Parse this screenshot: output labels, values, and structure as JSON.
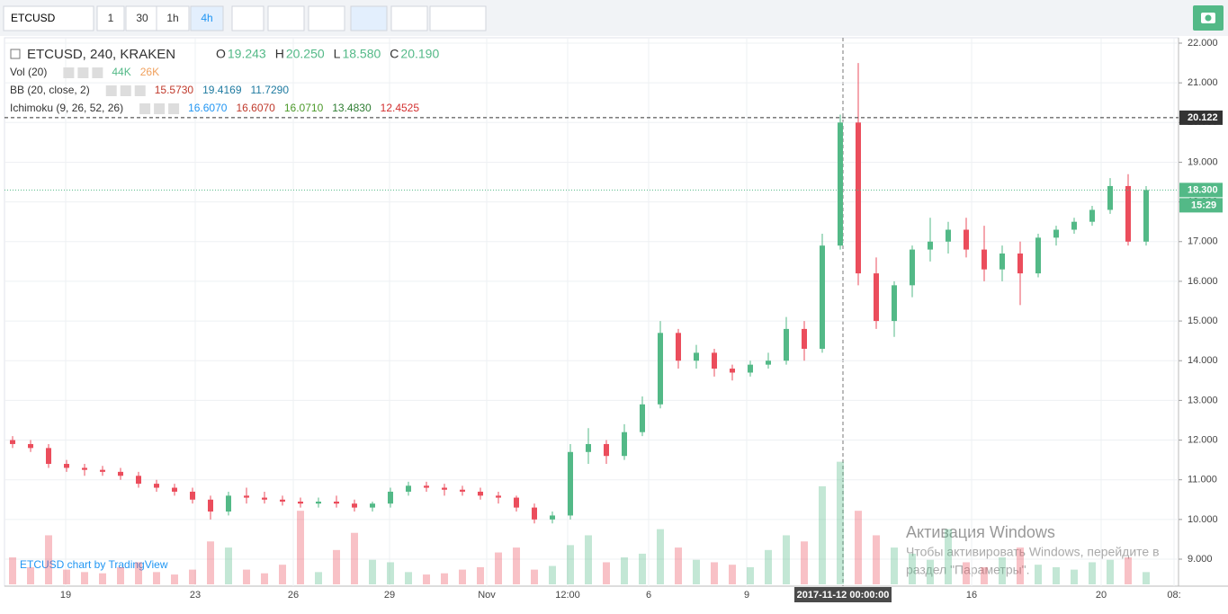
{
  "toolbar": {
    "symbol": "ETCUSD",
    "intervals": [
      "1",
      "30",
      "1h",
      "4h"
    ]
  },
  "legend": {
    "title": "ETCUSD, 240, KRAKEN",
    "ohlc": [
      {
        "k": "O",
        "v": "19.243"
      },
      {
        "k": "H",
        "v": "20.250"
      },
      {
        "k": "L",
        "v": "18.580"
      },
      {
        "k": "C",
        "v": "20.190"
      }
    ],
    "studies": [
      {
        "name": "Vol (20)",
        "values": [
          "44K",
          "26K"
        ],
        "colors": [
          "#53b987",
          "#f0a15e"
        ]
      },
      {
        "name": "BB (20, close, 2)",
        "values": [
          "15.5730",
          "19.4169",
          "11.7290"
        ],
        "colors": [
          "#c0392b",
          "#1e7aa0",
          "#1e7aa0"
        ]
      },
      {
        "name": "Ichimoku (9, 26, 52, 26)",
        "values": [
          "16.6070",
          "16.6070",
          "16.0710",
          "13.4830",
          "12.4525"
        ],
        "colors": [
          "#2196f3",
          "#c0392b",
          "#4c9a2a",
          "#2e7d32",
          "#d32f2f"
        ]
      }
    ]
  },
  "chart_data": {
    "type": "candlestick",
    "up_color": "#53b987",
    "down_color": "#eb4d5c",
    "ylim": [
      8.6,
      22.1
    ],
    "yticks": [
      {
        "value": 22,
        "label": "22.000"
      },
      {
        "value": 21,
        "label": "21.000"
      },
      {
        "value": 20,
        "label": "20.000"
      },
      {
        "value": 19,
        "label": "19.000"
      },
      {
        "value": 18,
        "label": "18.000"
      },
      {
        "value": 17,
        "label": "17.000"
      },
      {
        "value": 16,
        "label": "16.000"
      },
      {
        "value": 15,
        "label": "15.000"
      },
      {
        "value": 14,
        "label": "14.000"
      },
      {
        "value": 13,
        "label": "13.000"
      },
      {
        "value": 12,
        "label": "12.000"
      },
      {
        "value": 11,
        "label": "11.000"
      },
      {
        "value": 10,
        "label": "10.000"
      },
      {
        "value": 9,
        "label": "9.000"
      }
    ],
    "xlabels": [
      "19",
      "23",
      "26",
      "29",
      "Nov",
      "12:00",
      "6",
      "9",
      "16",
      "20",
      "08:"
    ],
    "crosshair_label": "2017-11-12 00:00:00",
    "open": [
      12.0,
      11.9,
      11.8,
      11.4,
      11.3,
      11.25,
      11.2,
      11.1,
      10.9,
      10.8,
      10.7,
      10.5,
      10.2,
      10.6,
      10.55,
      10.5,
      10.45,
      10.4,
      10.45,
      10.4,
      10.3,
      10.4,
      10.7,
      10.85,
      10.8,
      10.75,
      10.7,
      10.6,
      10.55,
      10.3,
      10.0,
      10.1,
      11.7,
      11.9,
      11.6,
      12.2,
      12.9,
      14.7,
      14.0,
      14.2,
      13.8,
      13.7,
      13.9,
      14.0,
      14.8,
      14.3,
      16.9,
      20.0,
      16.2,
      15.0,
      15.9,
      16.8,
      17.0,
      17.3,
      16.8,
      16.3,
      16.7,
      16.2,
      17.1,
      17.3,
      17.5,
      17.8,
      18.4,
      17.0
    ],
    "high": [
      12.1,
      12.0,
      11.9,
      11.5,
      11.4,
      11.35,
      11.3,
      11.2,
      11.0,
      10.9,
      10.8,
      10.6,
      10.7,
      10.8,
      10.7,
      10.6,
      10.55,
      10.55,
      10.6,
      10.5,
      10.45,
      10.8,
      10.95,
      10.95,
      10.9,
      10.85,
      10.8,
      10.7,
      10.6,
      10.4,
      10.2,
      11.9,
      12.3,
      12.0,
      12.4,
      13.1,
      15.0,
      14.8,
      14.4,
      14.3,
      13.9,
      14.0,
      14.2,
      15.1,
      15.0,
      17.2,
      20.2,
      21.5,
      16.6,
      16.0,
      16.9,
      17.6,
      17.5,
      17.6,
      17.4,
      16.9,
      17.0,
      17.2,
      17.4,
      17.6,
      17.9,
      18.6,
      18.7,
      18.4
    ],
    "low": [
      11.8,
      11.7,
      11.3,
      11.2,
      11.1,
      11.1,
      11.0,
      10.8,
      10.7,
      10.6,
      10.4,
      10.0,
      10.1,
      10.4,
      10.4,
      10.35,
      10.3,
      10.3,
      10.3,
      10.2,
      10.2,
      10.3,
      10.6,
      10.7,
      10.6,
      10.6,
      10.5,
      10.4,
      10.2,
      9.9,
      9.9,
      10.0,
      11.4,
      11.4,
      11.5,
      12.1,
      12.8,
      13.8,
      13.8,
      13.6,
      13.5,
      13.6,
      13.8,
      13.9,
      14.0,
      14.2,
      16.8,
      15.9,
      14.8,
      14.6,
      15.6,
      16.5,
      16.7,
      16.6,
      16.0,
      16.0,
      15.4,
      16.1,
      16.9,
      17.2,
      17.4,
      17.7,
      16.9,
      16.9
    ],
    "close": [
      11.9,
      11.8,
      11.4,
      11.3,
      11.25,
      11.2,
      11.1,
      10.9,
      10.8,
      10.7,
      10.5,
      10.2,
      10.6,
      10.55,
      10.5,
      10.45,
      10.4,
      10.45,
      10.4,
      10.3,
      10.4,
      10.7,
      10.85,
      10.8,
      10.75,
      10.7,
      10.6,
      10.55,
      10.3,
      10.0,
      10.1,
      11.7,
      11.9,
      11.6,
      12.2,
      12.9,
      14.7,
      14.0,
      14.2,
      13.8,
      13.7,
      13.9,
      14.0,
      14.8,
      14.3,
      16.9,
      20.0,
      16.2,
      15.0,
      15.9,
      16.8,
      17.0,
      17.3,
      16.8,
      16.3,
      16.7,
      16.2,
      17.1,
      17.3,
      17.5,
      17.8,
      18.4,
      17.0,
      18.3
    ],
    "volume": [
      22,
      14,
      40,
      12,
      10,
      9,
      14,
      18,
      10,
      8,
      12,
      35,
      30,
      12,
      9,
      16,
      60,
      10,
      28,
      42,
      20,
      18,
      10,
      8,
      9,
      12,
      14,
      26,
      30,
      12,
      15,
      32,
      40,
      18,
      22,
      25,
      45,
      30,
      20,
      18,
      16,
      14,
      28,
      40,
      35,
      80,
      100,
      60,
      40,
      30,
      25,
      20,
      45,
      18,
      14,
      22,
      30,
      16,
      14,
      12,
      18,
      20,
      22,
      10
    ],
    "volume_ylim": [
      0,
      110
    ],
    "hlines": [
      {
        "value": 20.122,
        "label": "20.122",
        "color": "#333"
      },
      {
        "value": 18.3,
        "label": "18.300",
        "color": "#53b987"
      }
    ],
    "countdown": "15:29"
  },
  "attribution": "ETCUSD chart by TradingView",
  "watermark": [
    "Активация Windows",
    "Чтобы активировать Windows, перейдите в",
    "раздел \"Параметры\"."
  ]
}
